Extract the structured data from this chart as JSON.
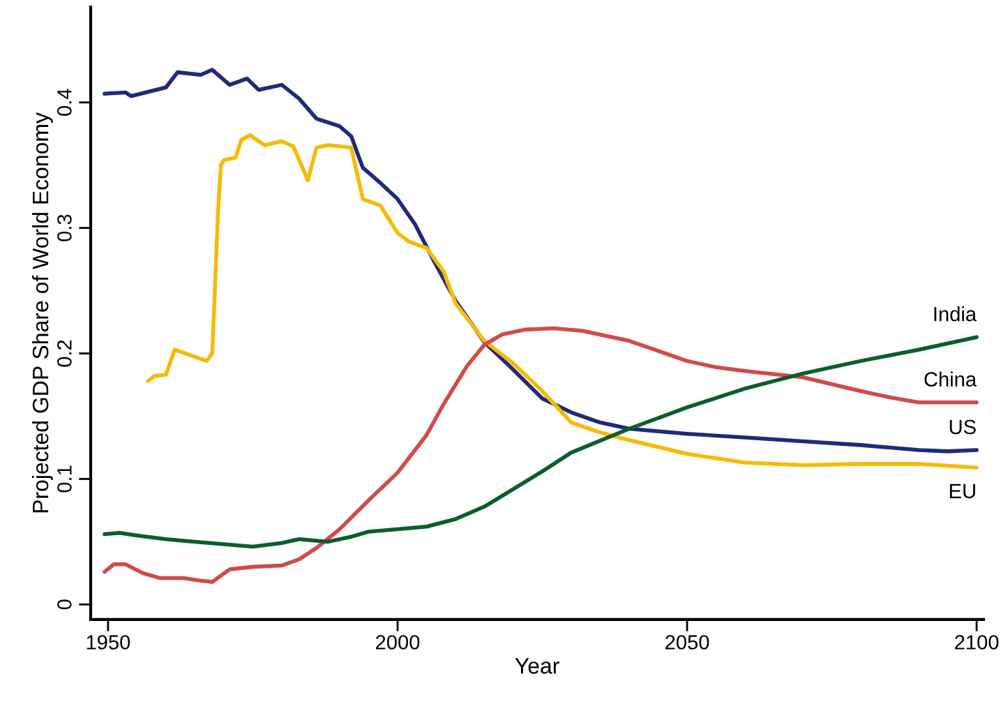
{
  "chart_data": {
    "type": "line",
    "xlabel": "Year",
    "ylabel": "Projected GDP Share of World Economy",
    "xlim": [
      1947,
      2101.2
    ],
    "xticks": [
      1950,
      2000,
      2050,
      2100
    ],
    "ylim": [
      -0.012,
      0.476
    ],
    "yticks": [
      0,
      0.1,
      0.2,
      0.3,
      0.4
    ],
    "grid": false,
    "legend": false,
    "marker": "none",
    "line_style": "solid",
    "series": [
      {
        "name": "US",
        "color": "#1f2a7a",
        "x": [
          1949.4,
          1953,
          1954,
          1960,
          1962,
          1966,
          1968,
          1971,
          1974,
          1976,
          1980,
          1983,
          1986,
          1990,
          1992,
          1994,
          1997,
          2000,
          2003,
          2006,
          2010,
          2015,
          2020,
          2025,
          2030,
          2035,
          2040,
          2050,
          2060,
          2070,
          2080,
          2090,
          2095,
          2100
        ],
        "values": [
          0.407,
          0.408,
          0.405,
          0.412,
          0.424,
          0.422,
          0.426,
          0.414,
          0.419,
          0.41,
          0.414,
          0.403,
          0.387,
          0.381,
          0.373,
          0.348,
          0.336,
          0.323,
          0.303,
          0.276,
          0.242,
          0.209,
          0.187,
          0.164,
          0.153,
          0.145,
          0.14,
          0.136,
          0.133,
          0.13,
          0.127,
          0.123,
          0.122,
          0.123
        ]
      },
      {
        "name": "EU",
        "color": "#f5bb0a",
        "x": [
          1956.9,
          1958,
          1960,
          1961.5,
          1964,
          1967,
          1968,
          1969,
          1969.5,
          1970,
          1972,
          1973,
          1974.5,
          1977,
          1980,
          1982,
          1984.5,
          1986,
          1988,
          1992,
          1994,
          1997,
          2000,
          2002,
          2005,
          2008,
          2010,
          2015,
          2020,
          2025,
          2030,
          2035,
          2040,
          2050,
          2060,
          2070,
          2080,
          2090,
          2100
        ],
        "values": [
          0.178,
          0.182,
          0.183,
          0.203,
          0.199,
          0.194,
          0.2,
          0.314,
          0.35,
          0.354,
          0.356,
          0.37,
          0.374,
          0.366,
          0.369,
          0.365,
          0.338,
          0.364,
          0.366,
          0.364,
          0.323,
          0.318,
          0.296,
          0.289,
          0.284,
          0.265,
          0.24,
          0.21,
          0.192,
          0.17,
          0.145,
          0.137,
          0.131,
          0.12,
          0.113,
          0.111,
          0.112,
          0.112,
          0.109
        ]
      },
      {
        "name": "China",
        "color": "#d24a4a",
        "x": [
          1949.4,
          1951,
          1953,
          1956,
          1959,
          1963,
          1966,
          1968,
          1971,
          1975,
          1980,
          1983,
          1986,
          1990,
          1995,
          2000,
          2005,
          2008,
          2012,
          2015,
          2018,
          2022,
          2027,
          2032,
          2040,
          2045,
          2050,
          2055,
          2060,
          2070,
          2080,
          2085,
          2090,
          2100
        ],
        "values": [
          0.026,
          0.032,
          0.032,
          0.025,
          0.021,
          0.021,
          0.019,
          0.018,
          0.028,
          0.03,
          0.031,
          0.036,
          0.045,
          0.06,
          0.083,
          0.105,
          0.135,
          0.16,
          0.19,
          0.207,
          0.215,
          0.219,
          0.22,
          0.218,
          0.21,
          0.202,
          0.194,
          0.189,
          0.186,
          0.181,
          0.17,
          0.165,
          0.161,
          0.161
        ]
      },
      {
        "name": "India",
        "color": "#0b5e2c",
        "x": [
          1949.4,
          1952,
          1955,
          1960,
          1965,
          1970,
          1975,
          1980,
          1983,
          1988,
          1992,
          1995,
          2000,
          2005,
          2010,
          2015,
          2020,
          2025,
          2030,
          2040,
          2050,
          2060,
          2070,
          2080,
          2090,
          2100
        ],
        "values": [
          0.056,
          0.057,
          0.055,
          0.052,
          0.05,
          0.048,
          0.046,
          0.049,
          0.052,
          0.05,
          0.054,
          0.058,
          0.06,
          0.062,
          0.068,
          0.078,
          0.092,
          0.106,
          0.121,
          0.14,
          0.157,
          0.172,
          0.184,
          0.194,
          0.203,
          0.213
        ]
      }
    ]
  }
}
